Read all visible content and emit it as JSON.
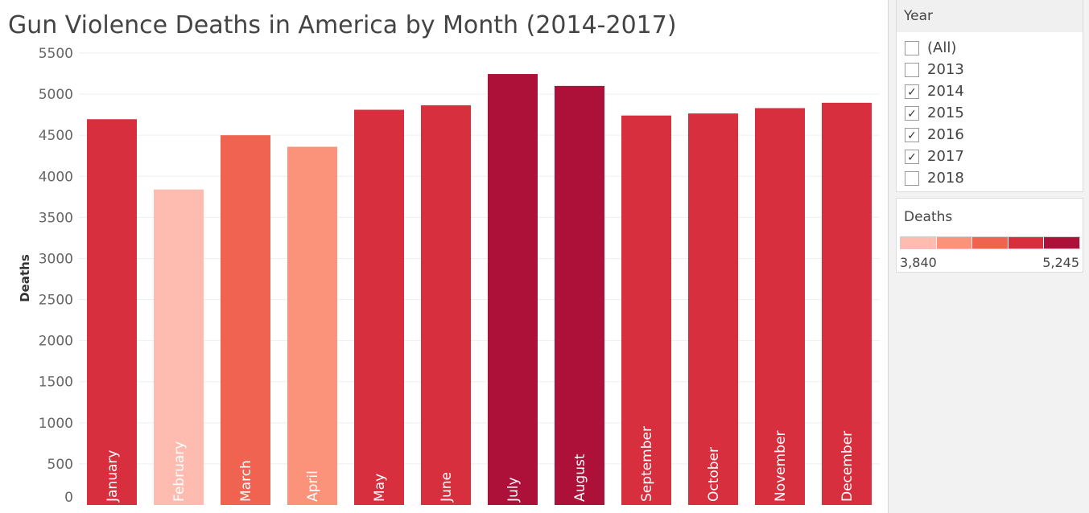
{
  "title": "Gun Violence Deaths in America by Month (2014-2017)",
  "chart_data": {
    "type": "bar",
    "title": "Gun Violence Deaths in America by Month (2014-2017)",
    "xlabel": "",
    "ylabel": "Deaths",
    "ylim": [
      0,
      5500
    ],
    "yticks": [
      0,
      500,
      1000,
      1500,
      2000,
      2500,
      3000,
      3500,
      4000,
      4500,
      5000,
      5500
    ],
    "categories": [
      "January",
      "February",
      "March",
      "April",
      "May",
      "June",
      "July",
      "August",
      "September",
      "October",
      "November",
      "December"
    ],
    "values": [
      4695,
      3840,
      4500,
      4360,
      4810,
      4865,
      5245,
      5100,
      4740,
      4765,
      4830,
      4895
    ],
    "bar_colors": [
      "#d82f3f",
      "#fdbcaf",
      "#ef6350",
      "#fa937a",
      "#d82f3f",
      "#d82f3f",
      "#ad1038",
      "#ad1038",
      "#d82f3f",
      "#d82f3f",
      "#d82f3f",
      "#d82f3f"
    ],
    "grid": true,
    "legend_position": "right"
  },
  "filters": {
    "year": {
      "title": "Year",
      "options": [
        {
          "label": "(All)",
          "checked": false
        },
        {
          "label": "2013",
          "checked": false
        },
        {
          "label": "2014",
          "checked": true
        },
        {
          "label": "2015",
          "checked": true
        },
        {
          "label": "2016",
          "checked": true
        },
        {
          "label": "2017",
          "checked": true
        },
        {
          "label": "2018",
          "checked": false
        }
      ]
    }
  },
  "legend": {
    "title": "Deaths",
    "min_label": "3,840",
    "max_label": "5,245",
    "colors": [
      "#fdbcaf",
      "#fa937a",
      "#ef6350",
      "#d82f3f",
      "#ad1038"
    ]
  }
}
